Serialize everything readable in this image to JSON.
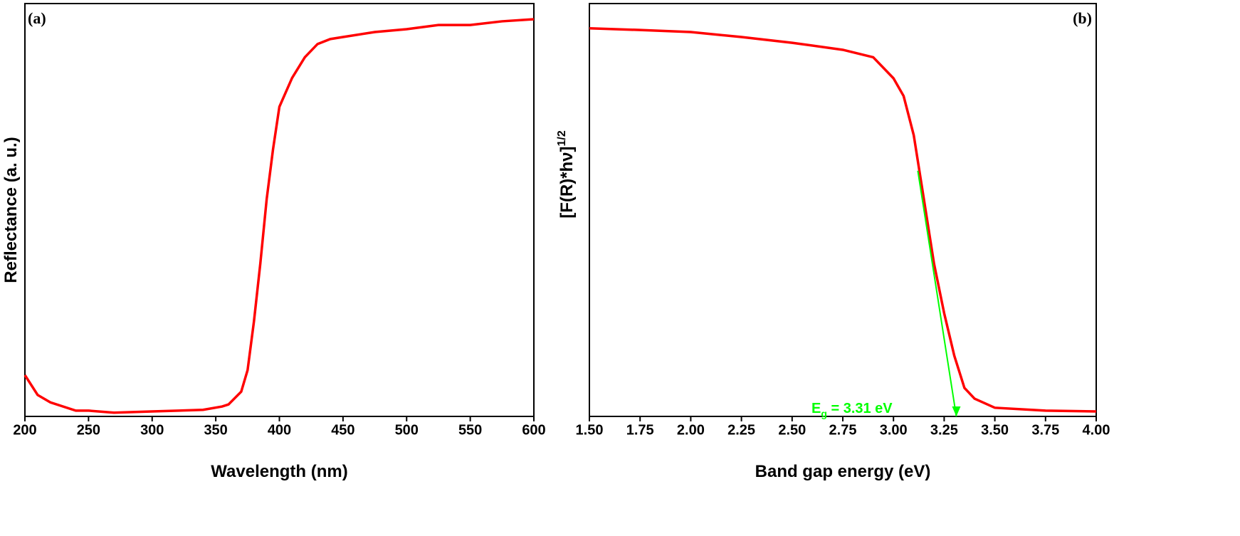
{
  "chart_data": [
    {
      "type": "line",
      "panel_label": "(a)",
      "xlabel": "Wavelength (nm)",
      "ylabel": "Reflectance (a. u.)",
      "xlim": [
        200,
        600
      ],
      "xticks": [
        200,
        250,
        300,
        350,
        400,
        450,
        500,
        550,
        600
      ],
      "ylim": [
        0,
        100
      ],
      "series": [
        {
          "color": "#ff0000",
          "x": [
            200,
            210,
            220,
            240,
            250,
            270,
            300,
            340,
            355,
            360,
            370,
            375,
            380,
            385,
            390,
            395,
            400,
            410,
            420,
            430,
            440,
            450,
            475,
            500,
            525,
            550,
            575,
            600
          ],
          "values": [
            10,
            5.2,
            3.4,
            1.4,
            1.4,
            0.9,
            1.2,
            1.6,
            2.4,
            2.9,
            6,
            11.2,
            23,
            37,
            52.6,
            64.7,
            75,
            82,
            87,
            90.2,
            91.4,
            91.9,
            93.1,
            93.8,
            94.8,
            94.8,
            95.7,
            96.2
          ]
        }
      ]
    },
    {
      "type": "line",
      "panel_label": "(b)",
      "xlabel": "Band gap energy (eV)",
      "ylabel": "[F(R)*hν]",
      "ylabel_superscript": "1/2",
      "xlim": [
        1.5,
        4.0
      ],
      "xticks": [
        {
          "value": 1.5,
          "label": "1.50"
        },
        1.75,
        {
          "value": 2.0,
          "label": "2.00"
        },
        2.25,
        {
          "value": 2.5,
          "label": "2.50"
        },
        2.75,
        {
          "value": 3.0,
          "label": "3.00"
        },
        3.25,
        {
          "value": 3.5,
          "label": "3.50"
        },
        3.75,
        {
          "value": 4.0,
          "label": "4.00"
        }
      ],
      "ylim": [
        0,
        100
      ],
      "series": [
        {
          "color": "#ff0000",
          "x": [
            1.5,
            1.75,
            2.0,
            2.25,
            2.5,
            2.75,
            2.9,
            3.0,
            3.05,
            3.1,
            3.15,
            3.2,
            3.25,
            3.3,
            3.35,
            3.4,
            3.5,
            3.75,
            4.0
          ],
          "values": [
            94,
            93.6,
            93.1,
            91.9,
            90.5,
            88.8,
            87,
            81.9,
            77.6,
            68.1,
            52.6,
            37,
            25,
            14.7,
            6.9,
            4.3,
            2.1,
            1.4,
            1.2
          ]
        },
        {
          "color": "#00ff00",
          "x": [
            3.12,
            3.31
          ],
          "values": [
            59.5,
            0
          ]
        }
      ],
      "annotation": {
        "text": "E",
        "subscript": "g",
        "suffix": " = 3.31 eV",
        "color": "#00ff00"
      }
    }
  ]
}
